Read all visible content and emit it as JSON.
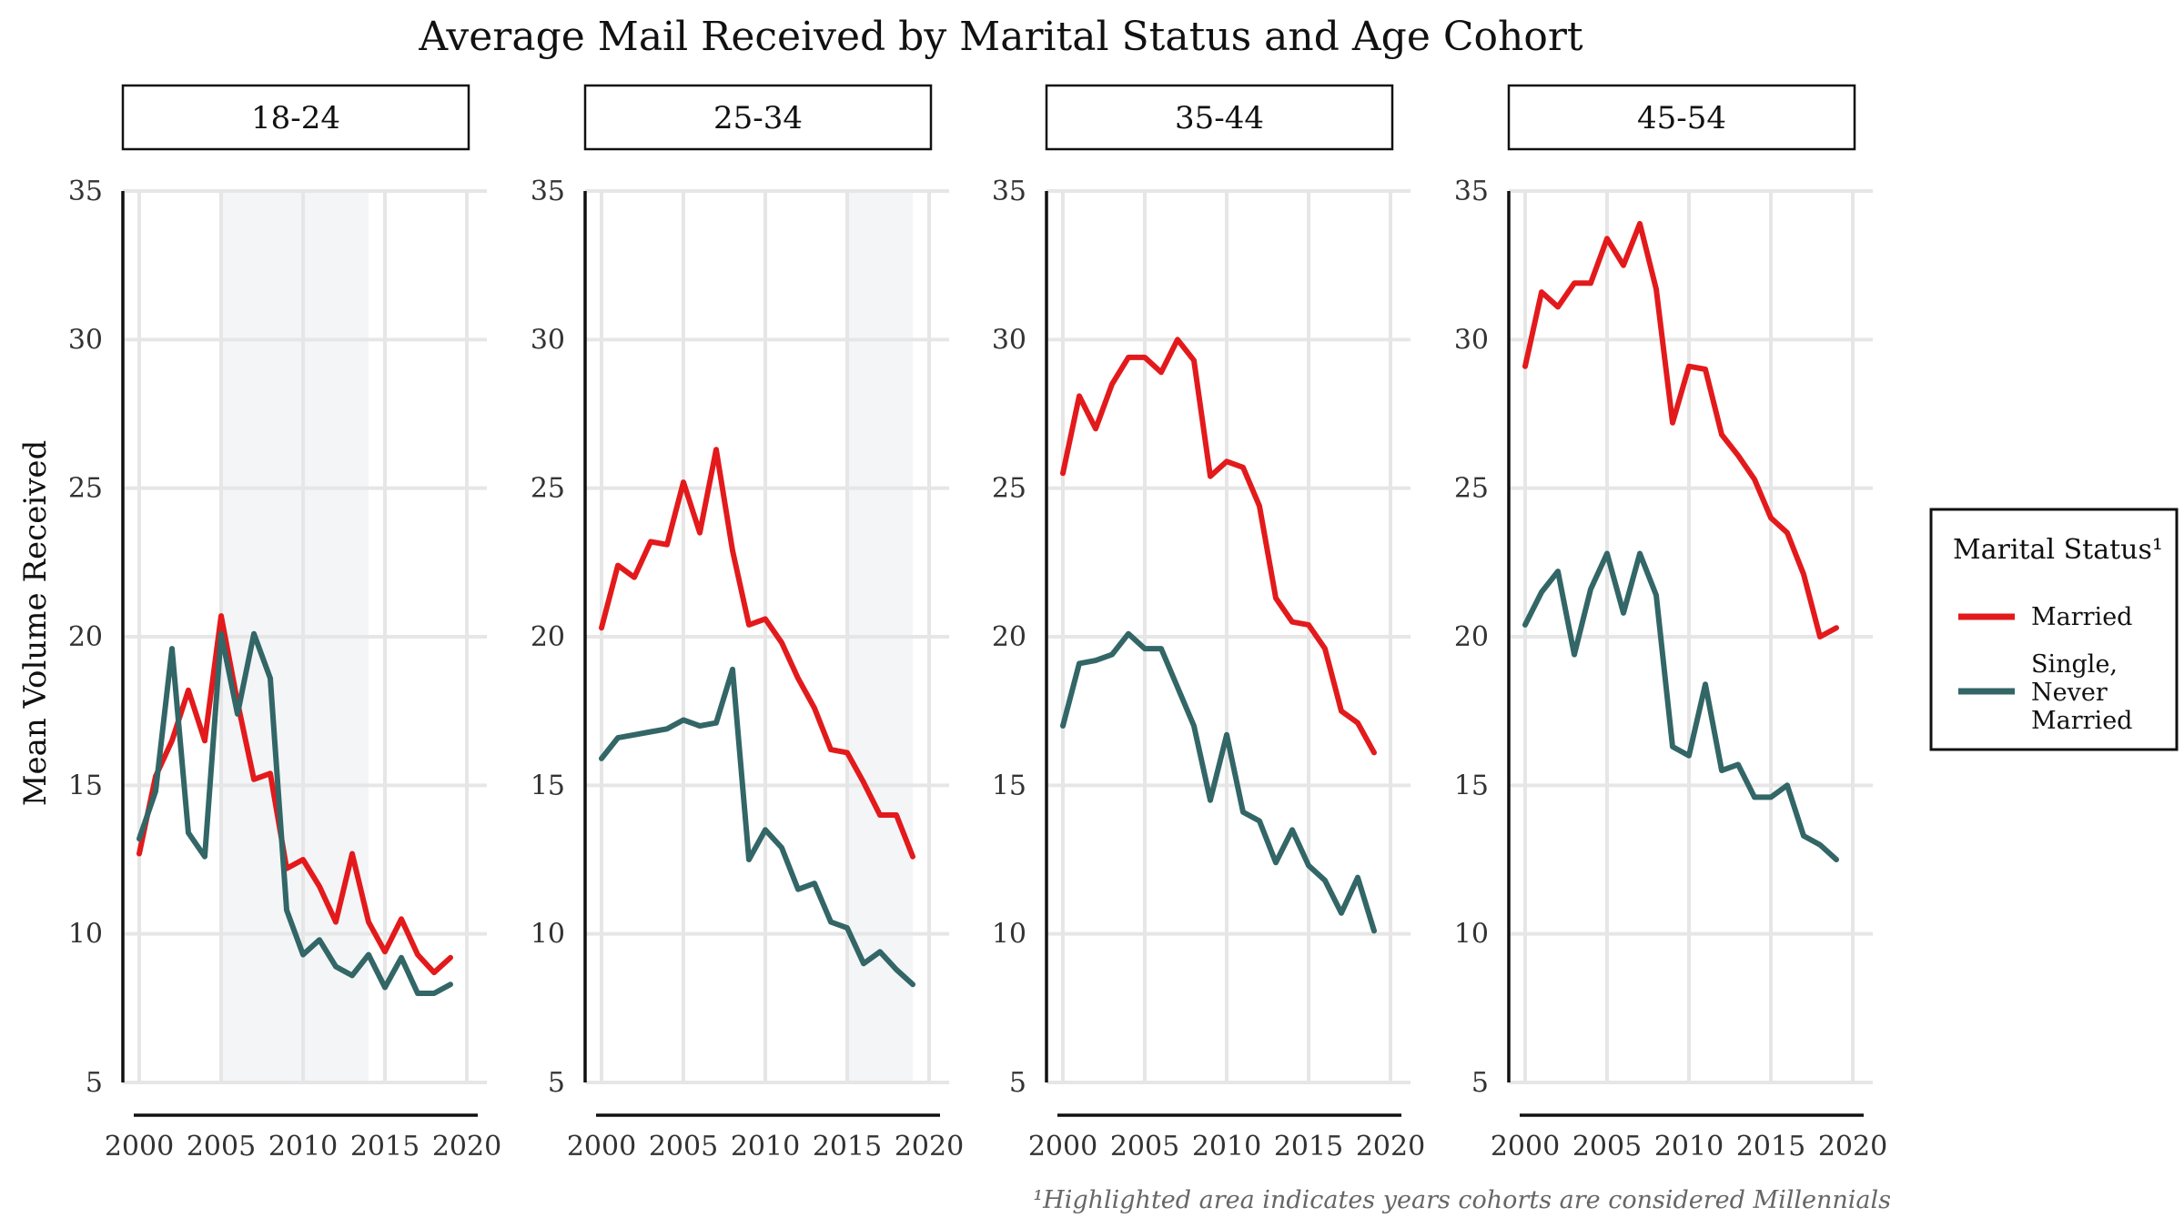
{
  "chart_data": {
    "type": "line",
    "title": "Average Mail Received by Marital Status and Age Cohort",
    "ylabel": "Mean Volume Received",
    "xlabel": "",
    "xlim": [
      2000,
      2020
    ],
    "ylim": [
      5,
      35
    ],
    "x_ticks": [
      2000,
      2005,
      2010,
      2015,
      2020
    ],
    "y_ticks": [
      5,
      10,
      15,
      20,
      25,
      30,
      35
    ],
    "legend": {
      "title": "Marital Status¹",
      "position": "right",
      "entries": [
        {
          "label": "Married",
          "lines": [
            "Married"
          ],
          "color": "#e31a1c"
        },
        {
          "label": "Single, Never Married",
          "lines": [
            "Single,",
            "Never",
            "Married"
          ],
          "color": "#336666"
        }
      ]
    },
    "caption": "¹Highlighted area indicates years cohorts are considered Millennials",
    "x": [
      2000,
      2001,
      2002,
      2003,
      2004,
      2005,
      2006,
      2007,
      2008,
      2009,
      2010,
      2011,
      2012,
      2013,
      2014,
      2015,
      2016,
      2017,
      2018,
      2019
    ],
    "panels": [
      {
        "label": "18-24",
        "highlight": [
          2005,
          2014
        ],
        "series": [
          {
            "name": "Married",
            "color": "#e31a1c",
            "values": [
              12.7,
              15.3,
              16.5,
              18.2,
              16.5,
              20.7,
              17.8,
              15.2,
              15.4,
              12.2,
              12.5,
              11.6,
              10.4,
              12.7,
              10.4,
              9.4,
              10.5,
              9.3,
              8.7,
              9.2
            ]
          },
          {
            "name": "Single, Never Married",
            "color": "#336666",
            "values": [
              13.2,
              14.8,
              19.6,
              13.4,
              12.6,
              20.1,
              17.4,
              20.1,
              18.6,
              10.8,
              9.3,
              9.8,
              8.9,
              8.6,
              9.3,
              8.2,
              9.2,
              8.0,
              8.0,
              8.3
            ]
          }
        ]
      },
      {
        "label": "25-34",
        "highlight": [
          2015,
          2019
        ],
        "series": [
          {
            "name": "Married",
            "color": "#e31a1c",
            "values": [
              20.3,
              22.4,
              22.0,
              23.2,
              23.1,
              25.2,
              23.5,
              26.3,
              22.9,
              20.4,
              20.6,
              19.8,
              18.6,
              17.6,
              16.2,
              16.1,
              15.1,
              14.0,
              14.0,
              12.6
            ]
          },
          {
            "name": "Single, Never Married",
            "color": "#336666",
            "values": [
              15.9,
              16.6,
              16.7,
              16.8,
              16.9,
              17.2,
              17.0,
              17.1,
              18.9,
              12.5,
              13.5,
              12.9,
              11.5,
              11.7,
              10.4,
              10.2,
              9.0,
              9.4,
              8.8,
              8.3
            ]
          }
        ]
      },
      {
        "label": "35-44",
        "highlight": null,
        "series": [
          {
            "name": "Married",
            "color": "#e31a1c",
            "values": [
              25.5,
              28.1,
              27.0,
              28.5,
              29.4,
              29.4,
              28.9,
              30.0,
              29.3,
              25.4,
              25.9,
              25.7,
              24.4,
              21.3,
              20.5,
              20.4,
              19.6,
              17.5,
              17.1,
              16.1
            ]
          },
          {
            "name": "Single, Never Married",
            "color": "#336666",
            "values": [
              17.0,
              19.1,
              19.2,
              19.4,
              20.1,
              19.6,
              19.6,
              18.3,
              17.0,
              14.5,
              16.7,
              14.1,
              13.8,
              12.4,
              13.5,
              12.3,
              11.8,
              10.7,
              11.9,
              10.1
            ]
          }
        ]
      },
      {
        "label": "45-54",
        "highlight": null,
        "series": [
          {
            "name": "Married",
            "color": "#e31a1c",
            "values": [
              29.1,
              31.6,
              31.1,
              31.9,
              31.9,
              33.4,
              32.5,
              33.9,
              31.7,
              27.2,
              29.1,
              29.0,
              26.8,
              26.1,
              25.3,
              24.0,
              23.5,
              22.1,
              20.0,
              20.3
            ]
          },
          {
            "name": "Single, Never Married",
            "color": "#336666",
            "values": [
              20.4,
              21.5,
              22.2,
              19.4,
              21.6,
              22.8,
              20.8,
              22.8,
              21.4,
              16.3,
              16.0,
              18.4,
              15.5,
              15.7,
              14.6,
              14.6,
              15.0,
              13.3,
              13.0,
              12.5
            ]
          }
        ]
      }
    ],
    "colors": {
      "highlight": "#f3f5f7",
      "grid": "#e6e6e6"
    }
  }
}
